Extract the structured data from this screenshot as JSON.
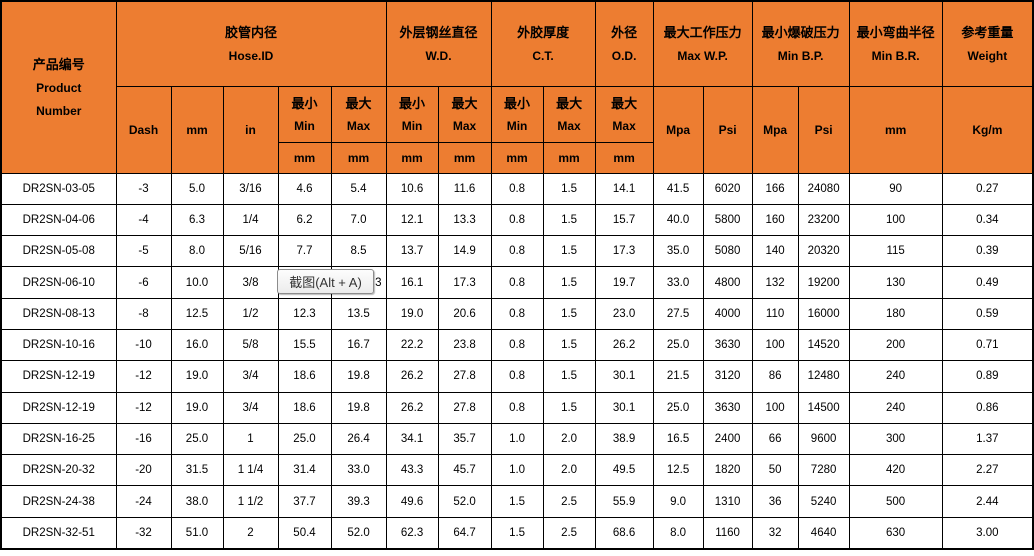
{
  "colors": {
    "header_bg": "#ED7D31",
    "border": "#000000",
    "tooltip_border": "#8C8C8C"
  },
  "header": {
    "product": {
      "zh": "产品编号",
      "en1": "Product",
      "en2": "Number"
    },
    "groups": [
      {
        "zh": "胶管内径",
        "en": "Hose.ID"
      },
      {
        "zh": "外层钢丝直径",
        "en": "W.D."
      },
      {
        "zh": "外胶厚度",
        "en": "C.T."
      },
      {
        "zh": "外径",
        "en": "O.D."
      },
      {
        "zh": "最大工作压力",
        "en": "Max W.P."
      },
      {
        "zh": "最小爆破压力",
        "en": "Min B.P."
      },
      {
        "zh": "最小弯曲半径",
        "en": "Min B.R."
      },
      {
        "zh": "参考重量",
        "en": "Weight"
      }
    ],
    "sub": {
      "dash": "Dash",
      "mm": "mm",
      "in": "in",
      "min_zh": "最小",
      "min_en": "Min",
      "max_zh": "最大",
      "max_en": "Max",
      "mpa": "Mpa",
      "psi": "Psi",
      "unit_mm": "mm",
      "kgm": "Kg/m"
    }
  },
  "rows": [
    [
      "DR2SN-03-05",
      "-3",
      "5.0",
      "3/16",
      "4.6",
      "5.4",
      "10.6",
      "11.6",
      "0.8",
      "1.5",
      "14.1",
      "41.5",
      "6020",
      "166",
      "24080",
      "90",
      "0.27"
    ],
    [
      "DR2SN-04-06",
      "-4",
      "6.3",
      "1/4",
      "6.2",
      "7.0",
      "12.1",
      "13.3",
      "0.8",
      "1.5",
      "15.7",
      "40.0",
      "5800",
      "160",
      "23200",
      "100",
      "0.34"
    ],
    [
      "DR2SN-05-08",
      "-5",
      "8.0",
      "5/16",
      "7.7",
      "8.5",
      "13.7",
      "14.9",
      "0.8",
      "1.5",
      "17.3",
      "35.0",
      "5080",
      "140",
      "20320",
      "115",
      "0.39"
    ],
    [
      "DR2SN-06-10",
      "-6",
      "10.0",
      "3/8",
      "",
      "3",
      "16.1",
      "17.3",
      "0.8",
      "1.5",
      "19.7",
      "33.0",
      "4800",
      "132",
      "19200",
      "130",
      "0.49"
    ],
    [
      "DR2SN-08-13",
      "-8",
      "12.5",
      "1/2",
      "12.3",
      "13.5",
      "19.0",
      "20.6",
      "0.8",
      "1.5",
      "23.0",
      "27.5",
      "4000",
      "110",
      "16000",
      "180",
      "0.59"
    ],
    [
      "DR2SN-10-16",
      "-10",
      "16.0",
      "5/8",
      "15.5",
      "16.7",
      "22.2",
      "23.8",
      "0.8",
      "1.5",
      "26.2",
      "25.0",
      "3630",
      "100",
      "14520",
      "200",
      "0.71"
    ],
    [
      "DR2SN-12-19",
      "-12",
      "19.0",
      "3/4",
      "18.6",
      "19.8",
      "26.2",
      "27.8",
      "0.8",
      "1.5",
      "30.1",
      "21.5",
      "3120",
      "86",
      "12480",
      "240",
      "0.89"
    ],
    [
      "DR2SN-12-19",
      "-12",
      "19.0",
      "3/4",
      "18.6",
      "19.8",
      "26.2",
      "27.8",
      "0.8",
      "1.5",
      "30.1",
      "25.0",
      "3630",
      "100",
      "14500",
      "240",
      "0.86"
    ],
    [
      "DR2SN-16-25",
      "-16",
      "25.0",
      "1",
      "25.0",
      "26.4",
      "34.1",
      "35.7",
      "1.0",
      "2.0",
      "38.9",
      "16.5",
      "2400",
      "66",
      "9600",
      "300",
      "1.37"
    ],
    [
      "DR2SN-20-32",
      "-20",
      "31.5",
      "1 1/4",
      "31.4",
      "33.0",
      "43.3",
      "45.7",
      "1.0",
      "2.0",
      "49.5",
      "12.5",
      "1820",
      "50",
      "7280",
      "420",
      "2.27"
    ],
    [
      "DR2SN-24-38",
      "-24",
      "38.0",
      "1 1/2",
      "37.7",
      "39.3",
      "49.6",
      "52.0",
      "1.5",
      "2.5",
      "55.9",
      "9.0",
      "1310",
      "36",
      "5240",
      "500",
      "2.44"
    ],
    [
      "DR2SN-32-51",
      "-32",
      "51.0",
      "2",
      "50.4",
      "52.0",
      "62.3",
      "64.7",
      "1.5",
      "2.5",
      "68.6",
      "8.0",
      "1160",
      "32",
      "4640",
      "630",
      "3.00"
    ]
  ],
  "tooltip": {
    "text": "截图(Alt + A)"
  }
}
